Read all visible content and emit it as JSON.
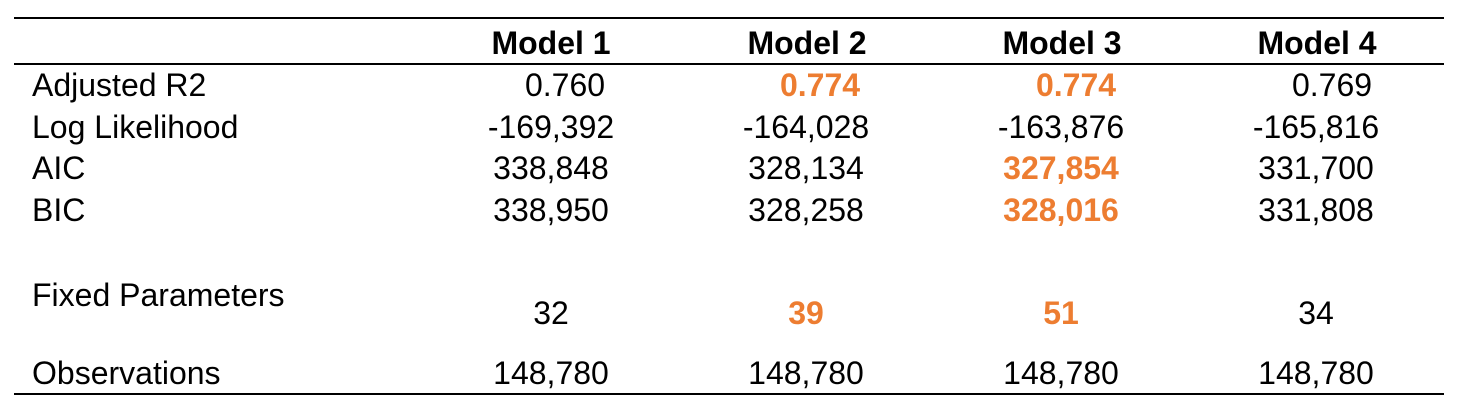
{
  "accent_color": "#ED7D31",
  "columns": [
    "Model 1",
    "Model 2",
    "Model 3",
    "Model 4"
  ],
  "rows": [
    {
      "label": "Adjusted R2",
      "values": [
        "0.760",
        "0.774",
        "0.774",
        "0.769"
      ],
      "highlight": [
        false,
        true,
        true,
        false
      ]
    },
    {
      "label": "Log Likelihood",
      "values": [
        "-169,392",
        "-164,028",
        "-163,876",
        "-165,816"
      ],
      "highlight": [
        false,
        false,
        false,
        false
      ]
    },
    {
      "label": "AIC",
      "values": [
        "338,848",
        "328,134",
        "327,854",
        "331,700"
      ],
      "highlight": [
        false,
        false,
        true,
        false
      ]
    },
    {
      "label": "BIC",
      "values": [
        "338,950",
        "328,258",
        "328,016",
        "331,808"
      ],
      "highlight": [
        false,
        false,
        true,
        false
      ]
    },
    {
      "label": "Fixed Parameters",
      "values": [
        "32",
        "39",
        "51",
        "34"
      ],
      "highlight": [
        false,
        true,
        true,
        false
      ]
    },
    {
      "label": "Observations",
      "values": [
        "148,780",
        "148,780",
        "148,780",
        "148,780"
      ],
      "highlight": [
        false,
        false,
        false,
        false
      ]
    }
  ]
}
